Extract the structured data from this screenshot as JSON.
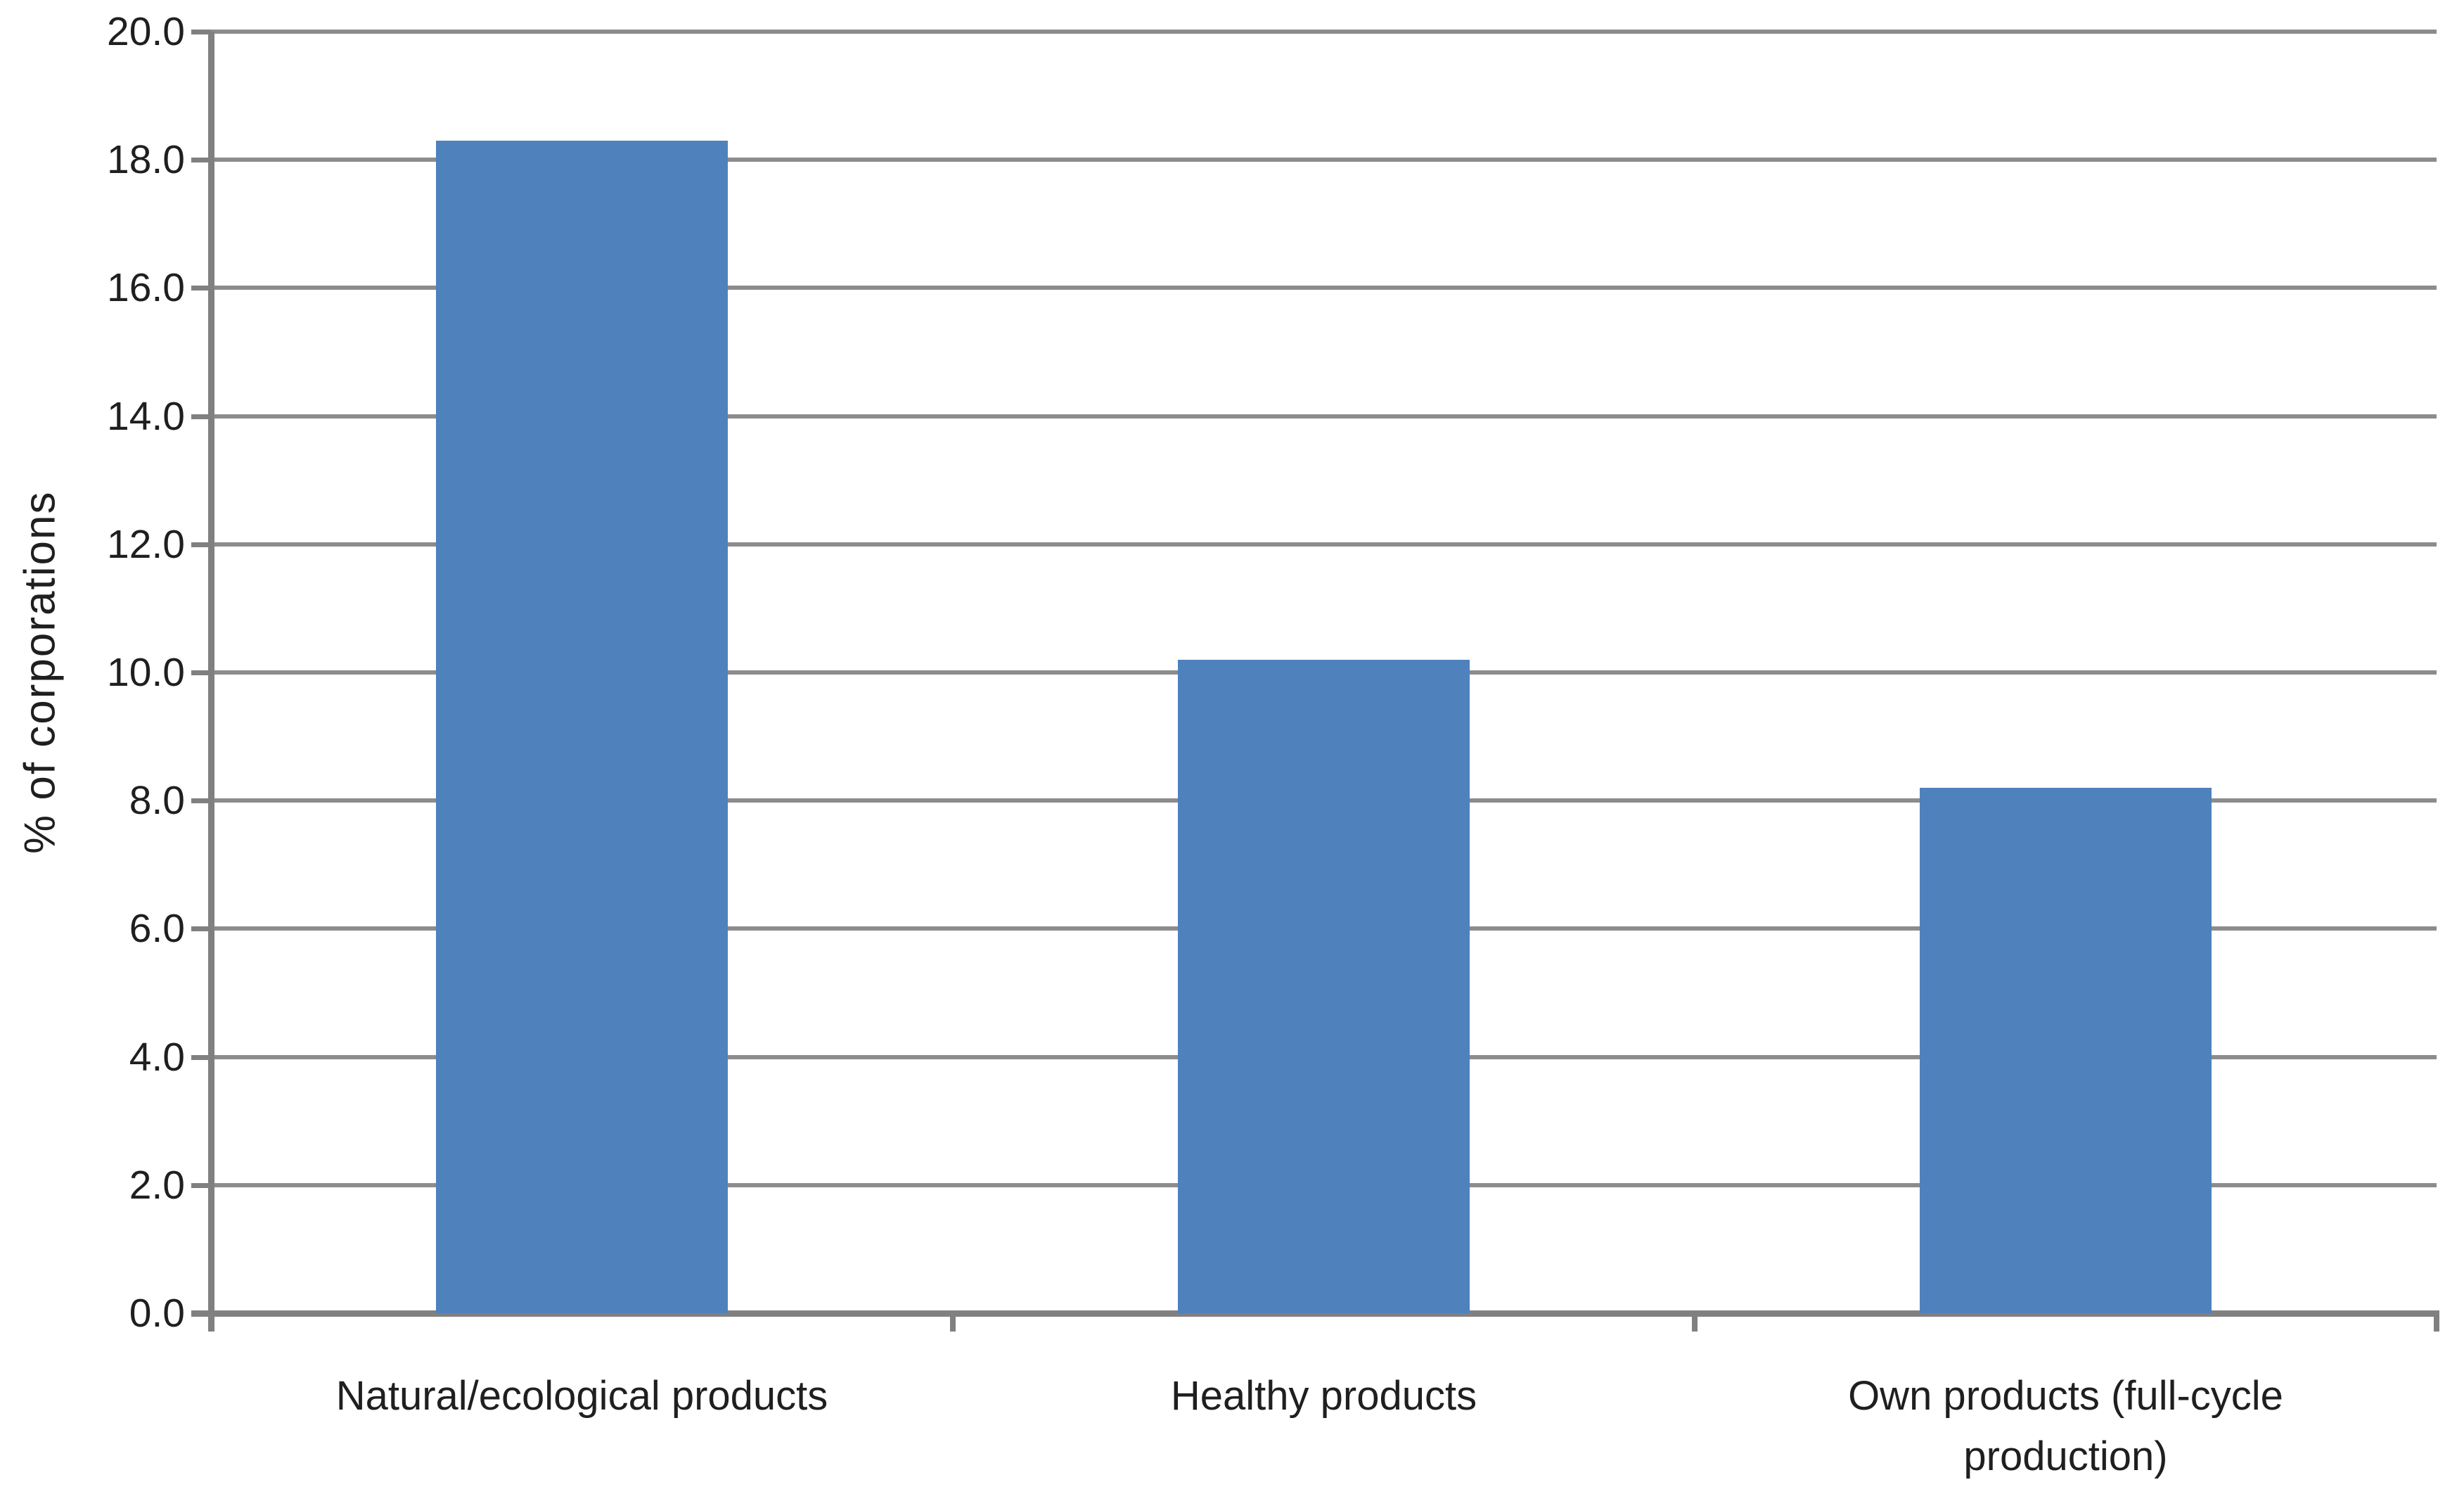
{
  "chart_data": {
    "type": "bar",
    "title": "",
    "categories": [
      "Natural/ecological products",
      "Healthy products",
      "Own products (full-cycle production)"
    ],
    "values": [
      18.3,
      10.2,
      8.2
    ],
    "series": [
      {
        "name": "% of corporations",
        "values": [
          18.3,
          10.2,
          8.2
        ]
      }
    ],
    "xlabel": "",
    "ylabel": "% of corporations",
    "ylim": [
      0,
      20
    ],
    "ytick_step": 2,
    "ytick_labels": [
      "0.0",
      "2.0",
      "4.0",
      "6.0",
      "8.0",
      "10.0",
      "12.0",
      "14.0",
      "16.0",
      "18.0",
      "20.0"
    ],
    "grid": true,
    "legend_position": "none",
    "colors": {
      "bar": "#4F81BD",
      "gridline": "#8C8C8C",
      "axis": "#808080",
      "text": "#1F1F1F",
      "background": "#FFFFFF"
    }
  }
}
